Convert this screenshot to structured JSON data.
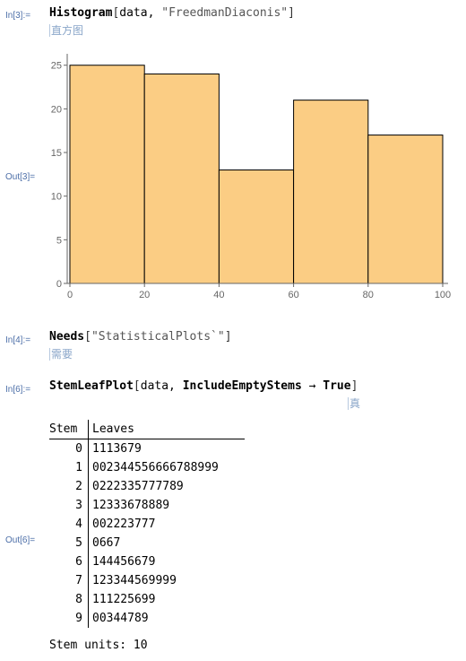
{
  "cells": {
    "in3": {
      "label": "In[3]:=",
      "fn": "Histogram",
      "open": "[",
      "arg": "data, ",
      "str": "\"FreedmanDiaconis\"",
      "close": "]",
      "hint": "直方图"
    },
    "out3": {
      "label": "Out[3]="
    },
    "in4": {
      "label": "In[4]:=",
      "fn": "Needs",
      "open": "[",
      "str": "\"StatisticalPlots`\"",
      "close": "]",
      "hint": "需要"
    },
    "in6": {
      "label": "In[6]:=",
      "fn": "StemLeafPlot",
      "open": "[",
      "arg": "data, ",
      "opt": "IncludeEmptyStems",
      "arrow": " → ",
      "val": "True",
      "close": "]",
      "hint": "真"
    },
    "out6": {
      "label": "Out[6]=",
      "header": {
        "stem": "Stem",
        "leaves": "Leaves"
      },
      "rows": [
        {
          "stem": "0",
          "leaves": "1113679"
        },
        {
          "stem": "1",
          "leaves": "002344556666788999"
        },
        {
          "stem": "2",
          "leaves": "0222335777789"
        },
        {
          "stem": "3",
          "leaves": "12333678889"
        },
        {
          "stem": "4",
          "leaves": "002223777"
        },
        {
          "stem": "5",
          "leaves": "0667"
        },
        {
          "stem": "6",
          "leaves": "144456679"
        },
        {
          "stem": "7",
          "leaves": "123344569999"
        },
        {
          "stem": "8",
          "leaves": "111225699"
        },
        {
          "stem": "9",
          "leaves": "00344789"
        }
      ],
      "footer": "Stem units: 10"
    }
  },
  "chart_data": {
    "type": "bar",
    "bins": [
      [
        0,
        20
      ],
      [
        20,
        40
      ],
      [
        40,
        60
      ],
      [
        60,
        80
      ],
      [
        80,
        100
      ]
    ],
    "values": [
      25,
      24,
      13,
      21,
      17
    ],
    "xticks": [
      0,
      20,
      40,
      60,
      80,
      100
    ],
    "yticks": [
      0,
      5,
      10,
      15,
      20,
      25
    ],
    "xlim": [
      0,
      100
    ],
    "ylim": [
      0,
      26
    ],
    "title": "",
    "xlabel": "",
    "ylabel": "",
    "bar_fill": "#fbcd84",
    "bar_stroke": "#000000",
    "axis_color": "#666666"
  }
}
